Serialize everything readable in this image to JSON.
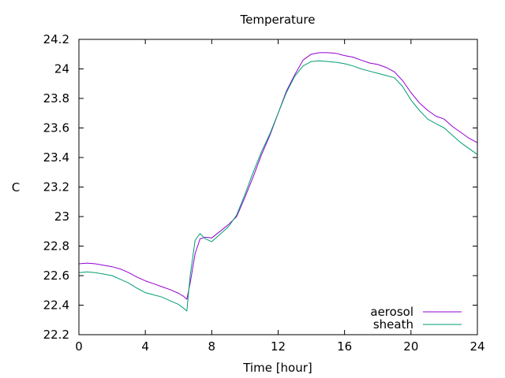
{
  "chart_data": {
    "type": "line",
    "title": "Temperature",
    "xlabel": "Time [hour]",
    "ylabel": "C",
    "xlim": [
      0,
      24
    ],
    "ylim": [
      22.2,
      24.2
    ],
    "xticks": [
      0,
      4,
      8,
      12,
      16,
      20,
      24
    ],
    "yticks": [
      22.2,
      22.4,
      22.6,
      22.8,
      23,
      23.2,
      23.4,
      23.6,
      23.8,
      24,
      24.2
    ],
    "xtick_labels": [
      "0",
      "4",
      "8",
      "12",
      "16",
      "20",
      "24"
    ],
    "ytick_labels": [
      "22.2",
      "22.4",
      "22.6",
      "22.8",
      "23",
      "23.2",
      "23.4",
      "23.6",
      "23.8",
      "24",
      "24.2"
    ],
    "grid": false,
    "legend_position": "bottom-right",
    "series": [
      {
        "name": "aerosol",
        "color": "#9400d3",
        "x": [
          0,
          0.5,
          1,
          1.5,
          2,
          2.5,
          3,
          3.5,
          4,
          4.5,
          5,
          5.5,
          6,
          6.3,
          6.5,
          6.7,
          7,
          7.3,
          7.6,
          8,
          8.5,
          9,
          9.5,
          10,
          10.5,
          11,
          11.5,
          12,
          12.5,
          13,
          13.5,
          14,
          14.5,
          15,
          15.5,
          16,
          16.5,
          17,
          17.5,
          18,
          18.5,
          19,
          19.5,
          20,
          20.5,
          21,
          21.5,
          22,
          22.5,
          23,
          23.5,
          24
        ],
        "y": [
          22.68,
          22.685,
          22.68,
          22.67,
          22.66,
          22.645,
          22.62,
          22.59,
          22.565,
          22.545,
          22.525,
          22.505,
          22.48,
          22.46,
          22.44,
          22.55,
          22.75,
          22.85,
          22.86,
          22.855,
          22.9,
          22.945,
          23.0,
          23.13,
          23.27,
          23.42,
          23.55,
          23.7,
          23.85,
          23.96,
          24.06,
          24.1,
          24.11,
          24.11,
          24.105,
          24.09,
          24.08,
          24.06,
          24.04,
          24.03,
          24.01,
          23.98,
          23.92,
          23.84,
          23.77,
          23.72,
          23.68,
          23.66,
          23.61,
          23.57,
          23.53,
          23.5
        ]
      },
      {
        "name": "sheath",
        "color": "#009e73",
        "x": [
          0,
          0.5,
          1,
          1.5,
          2,
          2.5,
          3,
          3.5,
          4,
          4.5,
          5,
          5.5,
          6,
          6.3,
          6.5,
          6.7,
          7,
          7.3,
          7.6,
          8,
          8.5,
          9,
          9.5,
          10,
          10.5,
          11,
          11.5,
          12,
          12.5,
          13,
          13.5,
          14,
          14.5,
          15,
          15.5,
          16,
          16.5,
          17,
          17.5,
          18,
          18.5,
          19,
          19.5,
          20,
          20.5,
          21,
          21.5,
          22,
          22.5,
          23,
          23.5,
          24
        ],
        "y": [
          22.62,
          22.625,
          22.62,
          22.61,
          22.6,
          22.575,
          22.55,
          22.515,
          22.485,
          22.47,
          22.455,
          22.43,
          22.405,
          22.38,
          22.36,
          22.6,
          22.84,
          22.885,
          22.85,
          22.83,
          22.88,
          22.93,
          23.01,
          23.15,
          23.3,
          23.44,
          23.56,
          23.7,
          23.84,
          23.95,
          24.02,
          24.05,
          24.055,
          24.05,
          24.045,
          24.035,
          24.02,
          24.0,
          23.985,
          23.97,
          23.955,
          23.94,
          23.88,
          23.79,
          23.72,
          23.66,
          23.63,
          23.6,
          23.55,
          23.5,
          23.46,
          23.42
        ]
      }
    ]
  }
}
